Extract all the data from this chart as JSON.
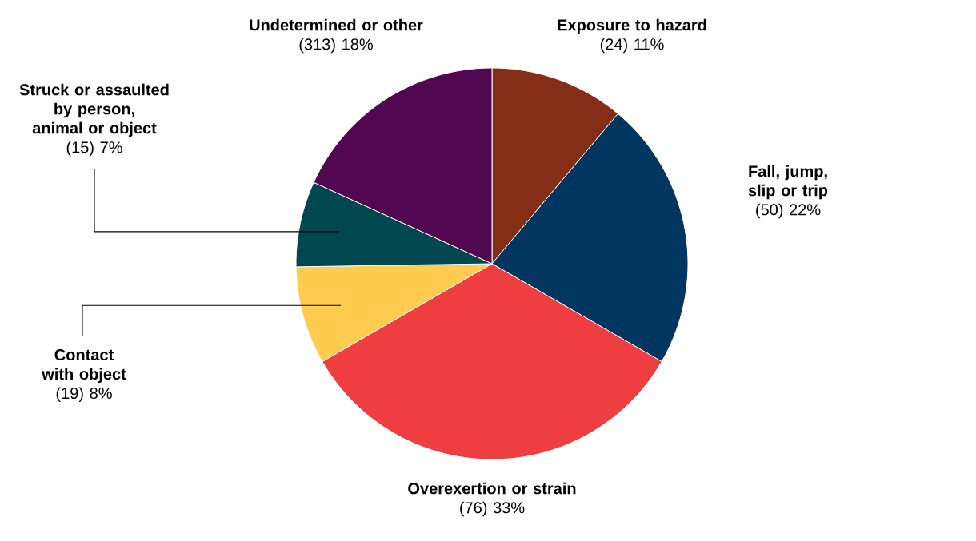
{
  "chart_data": {
    "type": "pie",
    "categories": [
      "Exposure to hazard",
      "Fall, jump, slip or trip",
      "Overexertion or strain",
      "Contact with object",
      "Struck or assaulted by person, animal or object",
      "Undetermined or other"
    ],
    "values": [
      11,
      22,
      33,
      8,
      7,
      18
    ],
    "value_labels": [
      "(24) 11%",
      "(50) 22%",
      "(76) 33%",
      "(19) 8%",
      "(15) 7%",
      "(313) 18%"
    ],
    "colors": [
      "#842d17",
      "#003660",
      "#ee3e42",
      "#ffcc4f",
      "#00474f",
      "#520751"
    ]
  }
}
